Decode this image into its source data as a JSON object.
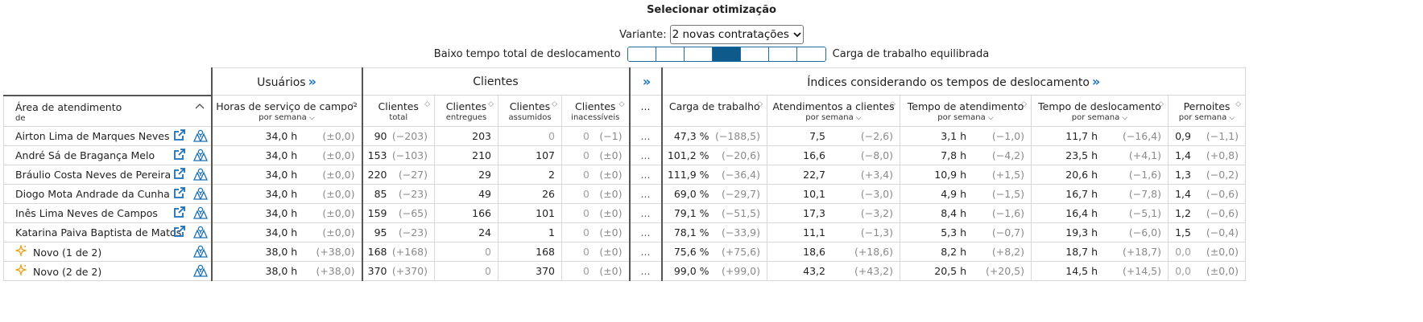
{
  "title": "Selecionar otimização",
  "variant": {
    "label": "Variante:",
    "selected": "2 novas contratações"
  },
  "slider": {
    "left_label": "Baixo tempo total de deslocamento",
    "right_label": "Carga de trabalho equilibrada",
    "segments": 7,
    "active_index": 3,
    "accent": "#0e5a8a"
  },
  "groups": {
    "usuarios": "Usuários",
    "clientes": "Clientes",
    "indices": "Índices considerando os tempos de deslocamento",
    "expand": "»"
  },
  "headers": {
    "area": "Área de atendimento",
    "area_sub": "de",
    "horas": "Horas de serviço de campo²",
    "horas_sub": "por semana",
    "clientes_total": "Clientes",
    "clientes_total_sub": "total",
    "clientes_entregues": "Clientes",
    "clientes_entregues_sub": "entregues",
    "clientes_assumidos": "Clientes",
    "clientes_assumidos_sub": "assumidos",
    "clientes_inacessiveis": "Clientes",
    "clientes_inacessiveis_sub": "inacessíveis",
    "dots": "...",
    "carga": "Carga de trabalho",
    "atendimentos": "Atendimentos a clientes",
    "atendimentos_sub": "por semana",
    "tempo_atend": "Tempo de atendimento",
    "tempo_atend_sub": "por semana",
    "tempo_desl": "Tempo de deslocamento",
    "tempo_desl_sub": "por semana",
    "pernoites": "Pernoites",
    "pernoites_sub": "por semana"
  },
  "icons": {
    "external": "external-link-icon",
    "map": "map-icon",
    "new": "sparkle-icon"
  },
  "rows": [
    {
      "name": "Airton Lima de Marques Neves",
      "new": false,
      "horas": "34,0 h",
      "horas_d": "(±0,0)",
      "total": "90",
      "total_d": "(−203)",
      "entregues": "203",
      "assumidos": "0",
      "inac": "0",
      "inac_d": "(−1)",
      "dots": "...",
      "carga": "47,3 %",
      "carga_d": "(−188,5)",
      "atend": "7,5",
      "atend_d": "(−2,6)",
      "tatend": "3,1 h",
      "tatend_d": "(−1,0)",
      "tdesl": "11,7 h",
      "tdesl_d": "(−16,4)",
      "pern": "0,9",
      "pern_d": "(−1,1)"
    },
    {
      "name": "André Sá de Bragança Melo",
      "new": false,
      "horas": "34,0 h",
      "horas_d": "(±0,0)",
      "total": "153",
      "total_d": "(−103)",
      "entregues": "210",
      "assumidos": "107",
      "inac": "0",
      "inac_d": "(±0)",
      "dots": "...",
      "carga": "101,2 %",
      "carga_d": "(−20,6)",
      "atend": "16,6",
      "atend_d": "(−8,0)",
      "tatend": "7,8 h",
      "tatend_d": "(−4,2)",
      "tdesl": "23,5 h",
      "tdesl_d": "(+4,1)",
      "pern": "1,4",
      "pern_d": "(+0,8)"
    },
    {
      "name": "Bráulio Costa Neves de Pereira",
      "new": false,
      "horas": "34,0 h",
      "horas_d": "(±0,0)",
      "total": "220",
      "total_d": "(−27)",
      "entregues": "29",
      "assumidos": "2",
      "inac": "0",
      "inac_d": "(±0)",
      "dots": "...",
      "carga": "111,9 %",
      "carga_d": "(−36,4)",
      "atend": "22,7",
      "atend_d": "(+3,4)",
      "tatend": "10,9 h",
      "tatend_d": "(+1,5)",
      "tdesl": "20,6 h",
      "tdesl_d": "(−1,6)",
      "pern": "1,3",
      "pern_d": "(−0,2)"
    },
    {
      "name": "Diogo Mota Andrade da Cunha",
      "new": false,
      "horas": "34,0 h",
      "horas_d": "(±0,0)",
      "total": "85",
      "total_d": "(−23)",
      "entregues": "49",
      "assumidos": "26",
      "inac": "0",
      "inac_d": "(±0)",
      "dots": "...",
      "carga": "69,0 %",
      "carga_d": "(−29,7)",
      "atend": "10,1",
      "atend_d": "(−3,0)",
      "tatend": "4,9 h",
      "tatend_d": "(−1,5)",
      "tdesl": "16,7 h",
      "tdesl_d": "(−7,8)",
      "pern": "1,4",
      "pern_d": "(−0,6)"
    },
    {
      "name": "Inês Lima Neves de Campos",
      "new": false,
      "horas": "34,0 h",
      "horas_d": "(±0,0)",
      "total": "159",
      "total_d": "(−65)",
      "entregues": "166",
      "assumidos": "101",
      "inac": "0",
      "inac_d": "(±0)",
      "dots": "...",
      "carga": "79,1 %",
      "carga_d": "(−51,5)",
      "atend": "17,3",
      "atend_d": "(−3,2)",
      "tatend": "8,4 h",
      "tatend_d": "(−1,6)",
      "tdesl": "16,4 h",
      "tdesl_d": "(−5,1)",
      "pern": "1,2",
      "pern_d": "(−0,6)"
    },
    {
      "name": "Katarina Paiva Baptista de Matos",
      "new": false,
      "horas": "34,0 h",
      "horas_d": "(±0,0)",
      "total": "95",
      "total_d": "(−23)",
      "entregues": "24",
      "assumidos": "1",
      "inac": "0",
      "inac_d": "(±0)",
      "dots": "...",
      "carga": "78,1 %",
      "carga_d": "(−33,9)",
      "atend": "11,1",
      "atend_d": "(−1,3)",
      "tatend": "5,3 h",
      "tatend_d": "(−0,7)",
      "tdesl": "19,3 h",
      "tdesl_d": "(−6,0)",
      "pern": "1,5",
      "pern_d": "(−0,4)"
    },
    {
      "name": "Novo (1 de 2)",
      "new": true,
      "horas": "38,0 h",
      "horas_d": "(+38,0)",
      "total": "168",
      "total_d": "(+168)",
      "entregues": "0",
      "assumidos": "168",
      "inac": "0",
      "inac_d": "(±0)",
      "dots": "...",
      "carga": "75,6 %",
      "carga_d": "(+75,6)",
      "atend": "18,6",
      "atend_d": "(+18,6)",
      "tatend": "8,2 h",
      "tatend_d": "(+8,2)",
      "tdesl": "18,7 h",
      "tdesl_d": "(+18,7)",
      "pern": "0,0",
      "pern_d": "(±0,0)"
    },
    {
      "name": "Novo (2 de 2)",
      "new": true,
      "horas": "38,0 h",
      "horas_d": "(+38,0)",
      "total": "370",
      "total_d": "(+370)",
      "entregues": "0",
      "assumidos": "370",
      "inac": "0",
      "inac_d": "(±0)",
      "dots": "...",
      "carga": "99,0 %",
      "carga_d": "(+99,0)",
      "atend": "43,2",
      "atend_d": "(+43,2)",
      "tatend": "20,5 h",
      "tatend_d": "(+20,5)",
      "tdesl": "14,5 h",
      "tdesl_d": "(+14,5)",
      "pern": "0,0",
      "pern_d": "(±0,0)"
    }
  ]
}
